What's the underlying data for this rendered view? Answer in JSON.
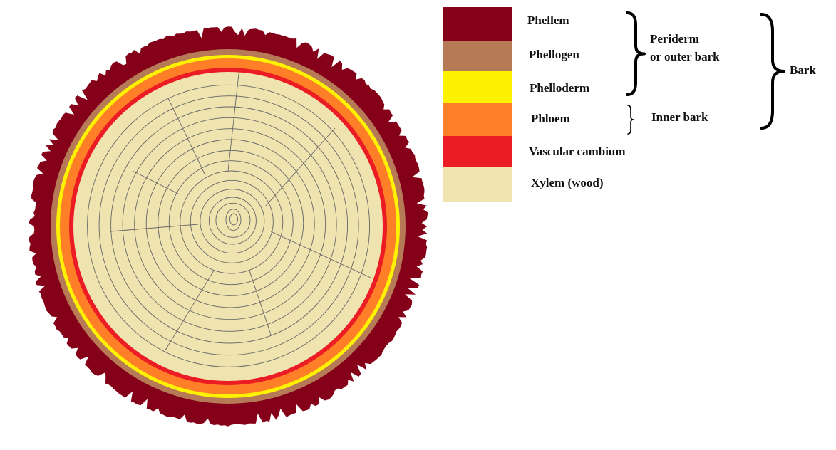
{
  "layers": [
    {
      "label": "Phellem",
      "color": "#850019"
    },
    {
      "label": "Phellogen",
      "color": "#b77a57"
    },
    {
      "label": "Phelloderm",
      "color": "#fff200"
    },
    {
      "label": "Phloem",
      "color": "#fe7f27"
    },
    {
      "label": "Vascular cambium",
      "color": "#ec1c24"
    },
    {
      "label": "Xylem (wood)",
      "color": "#efe3b0"
    }
  ],
  "groups": {
    "periderm": "Periderm",
    "periderm_2": "or outer bark",
    "inner_bark": "Inner bark",
    "bark": "Bark"
  }
}
